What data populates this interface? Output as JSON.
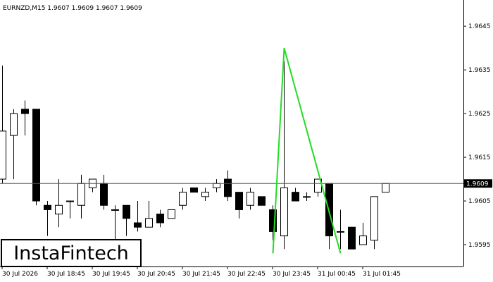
{
  "chart_data": {
    "type": "candlestick",
    "title": "EURNZD,M15  1.9607 1.9609 1.9607 1.9609",
    "categories": [
      "30 Jul 2026",
      null,
      null,
      null,
      "30 Jul 18:45",
      null,
      null,
      null,
      "30 Jul 19:45",
      null,
      null,
      null,
      "30 Jul 20:45",
      null,
      null,
      null,
      "30 Jul 21:45",
      null,
      null,
      null,
      "30 Jul 22:45",
      null,
      null,
      null,
      "30 Jul 23:45",
      null,
      null,
      null,
      "31 Jul 00:45",
      null,
      null,
      null,
      "31 Jul 01:45",
      null,
      null
    ],
    "open": [
      1.961,
      1.962,
      1.9626,
      1.9626,
      1.9604,
      1.9602,
      1.9605,
      1.9604,
      1.9608,
      1.9609,
      1.9603,
      1.9604,
      1.96,
      1.9599,
      1.9602,
      1.9601,
      1.9604,
      1.9608,
      1.9606,
      1.9608,
      1.961,
      1.9607,
      1.9604,
      1.9606,
      1.9603,
      1.9597,
      1.9607,
      1.9606,
      1.9607,
      1.9609,
      1.9598,
      1.9599,
      1.9595,
      1.9596,
      1.9607
    ],
    "high": [
      1.9636,
      1.9626,
      1.9628,
      1.9626,
      1.9605,
      1.961,
      1.9605,
      1.9611,
      1.961,
      1.9611,
      1.9604,
      1.9604,
      1.9605,
      1.9605,
      1.9603,
      1.9603,
      1.9608,
      1.9608,
      1.9608,
      1.961,
      1.9612,
      1.9607,
      1.9608,
      1.9606,
      1.9604,
      1.9637,
      1.9608,
      1.9607,
      1.961,
      1.9609,
      1.9603,
      1.9599,
      1.96,
      1.9606,
      1.9609
    ],
    "low": [
      1.9609,
      1.961,
      1.962,
      1.9604,
      1.9597,
      1.9599,
      1.9601,
      1.9601,
      1.9607,
      1.9603,
      1.9596,
      1.9597,
      1.9598,
      1.9599,
      1.9599,
      1.9601,
      1.9603,
      1.9607,
      1.9605,
      1.9607,
      1.9605,
      1.9601,
      1.9603,
      1.9604,
      1.9596,
      1.9594,
      1.9605,
      1.9605,
      1.9606,
      1.9594,
      1.9594,
      1.9594,
      1.9595,
      1.9594,
      1.9607
    ],
    "close": [
      1.9621,
      1.9625,
      1.9625,
      1.9605,
      1.9603,
      1.9604,
      1.9605,
      1.9609,
      1.961,
      1.9604,
      1.9603,
      1.9601,
      1.9599,
      1.9601,
      1.96,
      1.9603,
      1.9607,
      1.9607,
      1.9607,
      1.9609,
      1.9606,
      1.9603,
      1.9607,
      1.9604,
      1.9598,
      1.9608,
      1.9605,
      1.9606,
      1.961,
      1.9597,
      1.9598,
      1.9594,
      1.9597,
      1.9606,
      1.9609
    ],
    "up_color": "#ffffff",
    "down_color": "#000000",
    "ylim": [
      1.959,
      1.9651
    ],
    "yticks": [
      1.9595,
      1.9605,
      1.9615,
      1.9625,
      1.9635,
      1.9645
    ],
    "current_price": 1.9609,
    "pattern": {
      "color": "#22dd22",
      "points": [
        {
          "candle": 24,
          "value": 1.9593
        },
        {
          "candle": 25,
          "value": 1.964
        },
        {
          "candle": 30,
          "value": 1.9593
        }
      ]
    }
  },
  "watermark": "InstaFintech"
}
